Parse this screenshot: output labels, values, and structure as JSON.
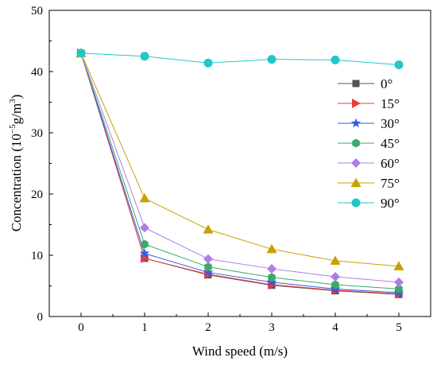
{
  "chart_data": {
    "type": "line",
    "xlabel": "Wind speed (m/s)",
    "ylabel": {
      "prefix": "Concentration (10",
      "exp1": "−5",
      "mid": "g/m",
      "exp2": "3",
      "suffix": ")"
    },
    "x": [
      0,
      1,
      2,
      3,
      4,
      5
    ],
    "xlim": [
      -0.5,
      5.5
    ],
    "ylim": [
      0,
      50
    ],
    "xticks": [
      "0",
      "1",
      "2",
      "3",
      "4",
      "5"
    ],
    "yticks": [
      "0",
      "10",
      "20",
      "30",
      "40",
      "50"
    ],
    "grid": false,
    "legend_position": "right",
    "series": [
      {
        "name": "0°",
        "color": "#555555",
        "marker": "square",
        "values": [
          43.0,
          9.5,
          6.8,
          5.1,
          4.2,
          3.6
        ]
      },
      {
        "name": "15°",
        "color": "#f03a3a",
        "marker": "triangle-right",
        "values": [
          43.0,
          9.5,
          6.9,
          5.2,
          4.3,
          3.7
        ]
      },
      {
        "name": "30°",
        "color": "#2f5fe8",
        "marker": "star",
        "values": [
          43.0,
          10.3,
          7.2,
          5.6,
          4.5,
          3.9
        ]
      },
      {
        "name": "45°",
        "color": "#3aaa6a",
        "marker": "hexagon",
        "values": [
          43.0,
          11.8,
          8.1,
          6.4,
          5.2,
          4.5
        ]
      },
      {
        "name": "60°",
        "color": "#b07de8",
        "marker": "diamond",
        "values": [
          43.0,
          14.5,
          9.4,
          7.8,
          6.5,
          5.6
        ]
      },
      {
        "name": "75°",
        "color": "#caa000",
        "marker": "triangle-up",
        "values": [
          43.0,
          19.3,
          14.2,
          11.0,
          9.1,
          8.2
        ]
      },
      {
        "name": "90°",
        "color": "#22c7c7",
        "marker": "circle",
        "values": [
          43.0,
          42.5,
          41.4,
          42.0,
          41.9,
          41.1
        ]
      }
    ]
  }
}
